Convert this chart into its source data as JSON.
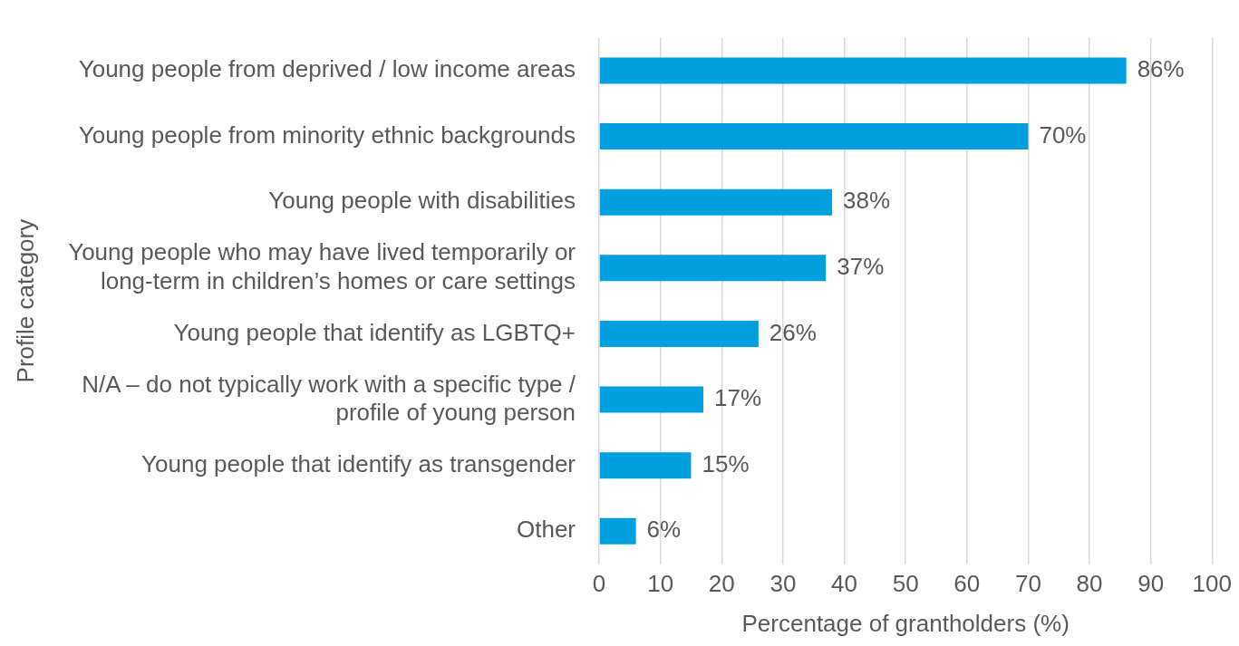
{
  "chart_data": {
    "type": "bar",
    "orientation": "horizontal",
    "categories": [
      "Young people from deprived / low income areas",
      "Young people from minority ethnic backgrounds",
      "Young people with disabilities",
      "Young people who may have lived temporarily or long-term in children’s homes or care settings",
      "Young people that identify as LGBTQ+",
      "N/A – do not typically work with a specific type / profile of young person",
      "Young people that identify as transgender",
      "Other"
    ],
    "values": [
      86,
      70,
      38,
      37,
      26,
      17,
      15,
      6
    ],
    "value_labels": [
      "86%",
      "70%",
      "38%",
      "37%",
      "26%",
      "17%",
      "15%",
      "6%"
    ],
    "color": "#009fe0",
    "xlim": [
      0,
      100
    ],
    "xticks": [
      0,
      10,
      20,
      30,
      40,
      50,
      60,
      70,
      80,
      90,
      100
    ],
    "xlabel": "Percentage of grantholders (%)",
    "ylabel": "Profile category",
    "grid": "x",
    "legend": false
  }
}
